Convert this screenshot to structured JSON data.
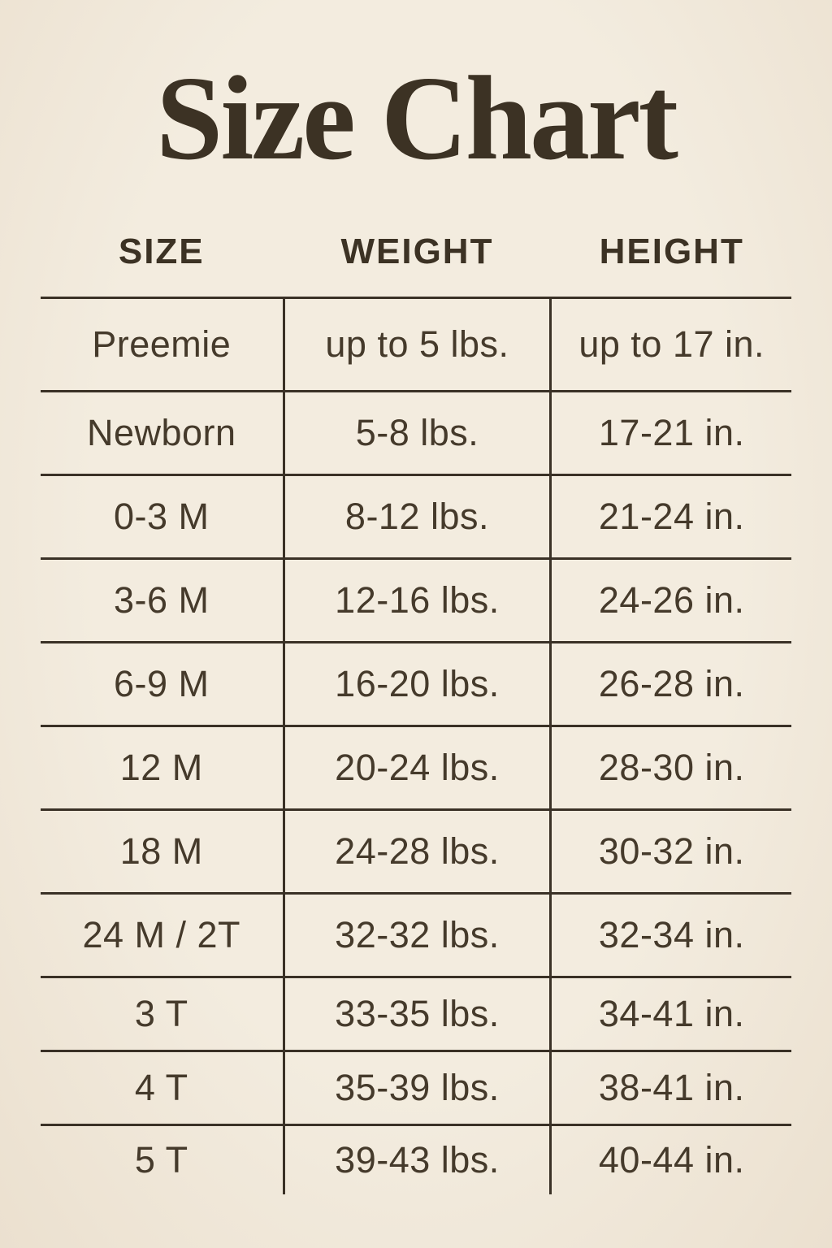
{
  "title": "Size Chart",
  "colors": {
    "background": "#f2eadd",
    "text": "#453a2b",
    "line": "#3a3126"
  },
  "chart_data": {
    "type": "table",
    "title": "Size Chart",
    "columns": [
      "SIZE",
      "WEIGHT",
      "HEIGHT"
    ],
    "rows": [
      [
        "Preemie",
        "up to 5 lbs.",
        "up to 17 in."
      ],
      [
        "Newborn",
        "5-8 lbs.",
        "17-21 in."
      ],
      [
        "0-3 M",
        "8-12 lbs.",
        "21-24 in."
      ],
      [
        "3-6 M",
        "12-16 lbs.",
        "24-26 in."
      ],
      [
        "6-9 M",
        "16-20 lbs.",
        "26-28 in."
      ],
      [
        "12 M",
        "20-24 lbs.",
        "28-30 in."
      ],
      [
        "18 M",
        "24-28 lbs.",
        "30-32 in."
      ],
      [
        "24 M / 2T",
        "32-32 lbs.",
        "32-34 in."
      ],
      [
        "3 T",
        "33-35 lbs.",
        "34-41 in."
      ],
      [
        "4 T",
        "35-39 lbs.",
        "38-41 in."
      ],
      [
        "5 T",
        "39-43 lbs.",
        "40-44 in."
      ]
    ]
  }
}
